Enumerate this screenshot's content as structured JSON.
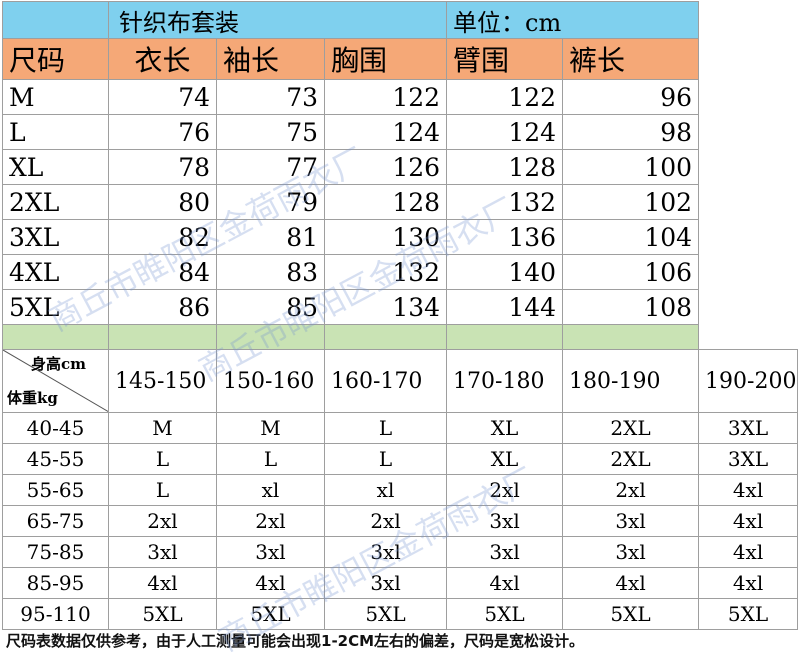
{
  "header": {
    "product": "针织布套装",
    "unit": "单位：cm"
  },
  "columns": [
    "尺码",
    "衣长",
    "袖长",
    "胸围",
    "臂围",
    "裤长"
  ],
  "size_rows": [
    [
      "M",
      "74",
      "73",
      "122",
      "122",
      "96"
    ],
    [
      "L",
      "76",
      "75",
      "124",
      "124",
      "98"
    ],
    [
      "XL",
      "78",
      "77",
      "126",
      "128",
      "100"
    ],
    [
      "2XL",
      "80",
      "79",
      "128",
      "132",
      "102"
    ],
    [
      "3XL",
      "82",
      "81",
      "130",
      "136",
      "104"
    ],
    [
      "4XL",
      "84",
      "83",
      "132",
      "140",
      "106"
    ],
    [
      "5XL",
      "86",
      "85",
      "134",
      "144",
      "108"
    ]
  ],
  "recommend": {
    "height_label": "身高cm",
    "weight_label": "体重kg",
    "heights": [
      "145-150",
      "150-160",
      "160-170",
      "170-180",
      "180-190",
      "190-200"
    ],
    "rows": [
      [
        "40-45",
        "M",
        "M",
        "L",
        "XL",
        "2XL",
        "3XL"
      ],
      [
        "45-55",
        "L",
        "L",
        "L",
        "XL",
        "2XL",
        "3XL"
      ],
      [
        "55-65",
        "L",
        "xl",
        "xl",
        "2xl",
        "2xl",
        "4xl"
      ],
      [
        "65-75",
        "2xl",
        "2xl",
        "2xl",
        "3xl",
        "3xl",
        "4xl"
      ],
      [
        "75-85",
        "3xl",
        "3xl",
        "3xl",
        "3xl",
        "3xl",
        "4xl"
      ],
      [
        "85-95",
        "4xl",
        "4xl",
        "3xl",
        "4xl",
        "4xl",
        "4xl"
      ],
      [
        "95-110",
        "5XL",
        "5XL",
        "5XL",
        "5XL",
        "5XL",
        "5XL"
      ]
    ]
  },
  "note": "尺码表数据仅供参考，由于人工测量可能会出现1-2CM左右的偏差，尺码是宽松设计。",
  "watermark": "商丘市睢阳区金荷雨衣厂"
}
